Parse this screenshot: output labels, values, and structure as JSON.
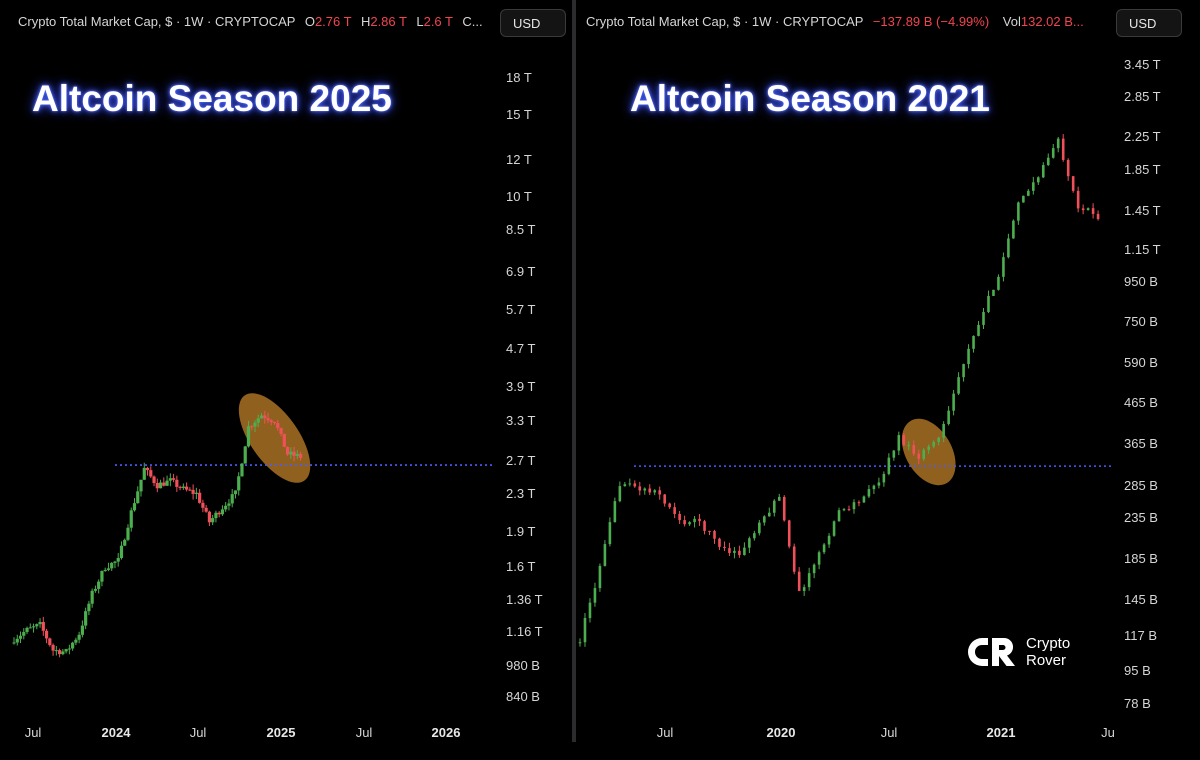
{
  "left_panel": {
    "header": {
      "symbol": "Crypto Total Market Cap, $ · 1W · CRYPTOCAP",
      "o_label": "O",
      "o_value": "2.76 T",
      "h_label": "H",
      "h_value": "2.86 T",
      "l_label": "L",
      "l_value": "2.6 T",
      "c_label": "C..."
    },
    "currency_button": "USD",
    "annotation": "Altcoin Season 2025",
    "y_ticks": [
      "18 T",
      "15 T",
      "12 T",
      "10 T",
      "8.5 T",
      "6.9 T",
      "5.7 T",
      "4.7 T",
      "3.9 T",
      "3.3 T",
      "2.7 T",
      "2.3 T",
      "1.9 T",
      "1.6 T",
      "1.36 T",
      "1.16 T",
      "980 B",
      "840 B"
    ],
    "x_ticks": [
      {
        "label": "Jul",
        "bold": false
      },
      {
        "label": "2024",
        "bold": true
      },
      {
        "label": "Jul",
        "bold": false
      },
      {
        "label": "2025",
        "bold": true
      },
      {
        "label": "Jul",
        "bold": false
      },
      {
        "label": "2026",
        "bold": true
      }
    ]
  },
  "right_panel": {
    "header": {
      "symbol": "Crypto Total Market Cap, $ · 1W · CRYPTOCAP",
      "change": "−137.89 B (−4.99%)",
      "vol_label": "Vol",
      "vol_value": "132.02 B..."
    },
    "currency_button": "USD",
    "annotation": "Altcoin Season 2021",
    "y_ticks": [
      "3.45 T",
      "2.85 T",
      "2.25 T",
      "1.85 T",
      "1.45 T",
      "1.15 T",
      "950 B",
      "750 B",
      "590 B",
      "465 B",
      "365 B",
      "285 B",
      "235 B",
      "185 B",
      "145 B",
      "117 B",
      "95 B",
      "78 B"
    ],
    "x_ticks": [
      {
        "label": "Jul",
        "bold": false
      },
      {
        "label": "2020",
        "bold": true
      },
      {
        "label": "Jul",
        "bold": false
      },
      {
        "label": "2021",
        "bold": true
      },
      {
        "label": "Ju",
        "bold": false
      }
    ]
  },
  "logo": {
    "line1": "Crypto",
    "line2": "Rover"
  },
  "colors": {
    "up": "#4cae4f",
    "down": "#f0505a",
    "resistance": "#4a5cff",
    "highlight": "#c8872a",
    "glow": "#3b55ff"
  },
  "chart_data": [
    {
      "type": "candlestick",
      "title": "Crypto Total Market Cap, $ · 1W · CRYPTOCAP",
      "annotation": "Altcoin Season 2025",
      "y_scale": "log",
      "ylim": [
        780,
        20000
      ],
      "y_unit": "B USD",
      "x_range": [
        "2023-05",
        "2026-06"
      ],
      "resistance_level": 2650,
      "highlighted_region": [
        "2024-11",
        "2025-02"
      ],
      "close_points": [
        {
          "x": "2023-05",
          "y": 1120
        },
        {
          "x": "2023-06",
          "y": 1170
        },
        {
          "x": "2023-07",
          "y": 1200
        },
        {
          "x": "2023-08",
          "y": 1060
        },
        {
          "x": "2023-09",
          "y": 1050
        },
        {
          "x": "2023-10",
          "y": 1150
        },
        {
          "x": "2023-11",
          "y": 1400
        },
        {
          "x": "2023-12",
          "y": 1600
        },
        {
          "x": "2024-01",
          "y": 1650
        },
        {
          "x": "2024-02",
          "y": 2100
        },
        {
          "x": "2024-03",
          "y": 2600
        },
        {
          "x": "2024-04",
          "y": 2400
        },
        {
          "x": "2024-05",
          "y": 2450
        },
        {
          "x": "2024-06",
          "y": 2350
        },
        {
          "x": "2024-07",
          "y": 2300
        },
        {
          "x": "2024-08",
          "y": 2000
        },
        {
          "x": "2024-09",
          "y": 2150
        },
        {
          "x": "2024-10",
          "y": 2300
        },
        {
          "x": "2024-11",
          "y": 3200
        },
        {
          "x": "2024-12",
          "y": 3400
        },
        {
          "x": "2025-01",
          "y": 3300
        },
        {
          "x": "2025-02",
          "y": 2800
        },
        {
          "x": "2025-03",
          "y": 2760
        }
      ]
    },
    {
      "type": "candlestick",
      "title": "Crypto Total Market Cap, $ · 1W · CRYPTOCAP",
      "annotation": "Altcoin Season 2021",
      "y_scale": "log",
      "ylim": [
        75,
        3700
      ],
      "y_unit": "B USD",
      "x_range": [
        "2019-04",
        "2021-07"
      ],
      "resistance_level": 320,
      "highlighted_region": [
        "2020-08",
        "2020-10"
      ],
      "close_points": [
        {
          "x": "2019-04",
          "y": 115
        },
        {
          "x": "2019-05",
          "y": 175
        },
        {
          "x": "2019-06",
          "y": 290
        },
        {
          "x": "2019-07",
          "y": 280
        },
        {
          "x": "2019-08",
          "y": 270
        },
        {
          "x": "2019-09",
          "y": 230
        },
        {
          "x": "2019-10",
          "y": 230
        },
        {
          "x": "2019-11",
          "y": 200
        },
        {
          "x": "2019-12",
          "y": 190
        },
        {
          "x": "2020-01",
          "y": 225
        },
        {
          "x": "2020-02",
          "y": 270
        },
        {
          "x": "2020-03",
          "y": 150
        },
        {
          "x": "2020-04",
          "y": 190
        },
        {
          "x": "2020-05",
          "y": 245
        },
        {
          "x": "2020-06",
          "y": 260
        },
        {
          "x": "2020-07",
          "y": 290
        },
        {
          "x": "2020-08",
          "y": 380
        },
        {
          "x": "2020-09",
          "y": 340
        },
        {
          "x": "2020-10",
          "y": 380
        },
        {
          "x": "2020-11",
          "y": 540
        },
        {
          "x": "2020-12",
          "y": 740
        },
        {
          "x": "2021-01",
          "y": 1000
        },
        {
          "x": "2021-02",
          "y": 1500
        },
        {
          "x": "2021-03",
          "y": 1800
        },
        {
          "x": "2021-04",
          "y": 2200
        },
        {
          "x": "2021-05",
          "y": 1500
        },
        {
          "x": "2021-06",
          "y": 1400
        }
      ]
    }
  ]
}
